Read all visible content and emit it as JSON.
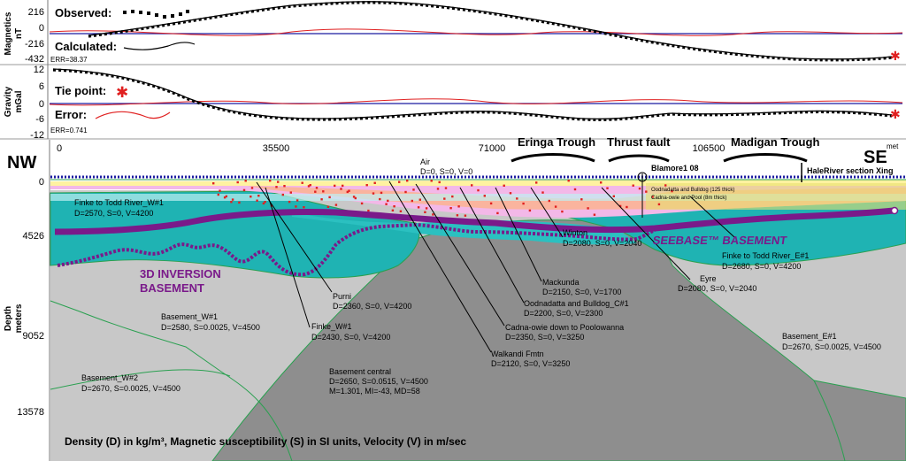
{
  "magnetics": {
    "axis_label": "Magnetics\nnT",
    "ticks": [
      "216",
      "0",
      "-216",
      "-432"
    ],
    "legend_observed": "Observed:",
    "legend_calculated": "Calculated:",
    "err": "ERR=38.37"
  },
  "gravity": {
    "axis_label": "Gravity\nmGal",
    "ticks": [
      "12",
      "6",
      "0",
      "-6",
      "-12"
    ],
    "legend_tie": "Tie point:",
    "legend_error": "Error:",
    "err": "ERR=0.741"
  },
  "section": {
    "x_ticks": [
      "0",
      "35500",
      "71000",
      "106500"
    ],
    "nw": "NW",
    "se": "SE",
    "unit_x": "met",
    "depth_ticks": [
      "0",
      "4526",
      "9052",
      "13578"
    ],
    "depth_label": "Depth\nmeters",
    "air_label": "Air",
    "air_params": "D=0, S=0, V=0",
    "well_label": "Blamore1 08",
    "xing_label": "HaleRiver section Xing",
    "small_layers": [
      "Oodnadatta and Bulldog (125 thick)",
      "Cadna-owie and Pool (8m thick)"
    ],
    "features": [
      "Eringa Trough",
      "Thrust fault",
      "Madigan Trough"
    ],
    "seebase": "SEEBASE™ BASEMENT",
    "inversion_basement": [
      "3D INVERSION",
      "BASEMENT"
    ],
    "footnote": "Density (D) in kg/m³, Magnetic susceptibility (S) in SI units, Velocity (V) in m/sec",
    "bodies": [
      {
        "name": "Finke to Todd River_W#1",
        "params": "D=2570, S=0, V=4200"
      },
      {
        "name": "Finke to Todd River_E#1",
        "params": "D=2680, S=0, V=4200"
      },
      {
        "name": "Winton",
        "params": "D=2080, S=0, V=2040"
      },
      {
        "name": "Mackunda",
        "params": "D=2150, S=0, V=1700"
      },
      {
        "name": "Oodnadatta and Bulldog_C#1",
        "params": "D=2200, S=0, V=2300"
      },
      {
        "name": "Eyre",
        "params": "D=2080, S=0, V=2040"
      },
      {
        "name": "Cadna-owie down to Poolowanna",
        "params": "D=2350, S=0, V=3250"
      },
      {
        "name": "Walkandi Fmtn",
        "params": "D=2120, S=0, V=3250"
      },
      {
        "name": "Purni",
        "params": "D=2360, S=0, V=4200"
      },
      {
        "name": "Finke_W#1",
        "params": "D=2430, S=0, V=4200"
      },
      {
        "name": "Basement_W#1",
        "params": "D=2580, S=0.0025, V=4500"
      },
      {
        "name": "Basement_W#2",
        "params": "D=2670, S=0.0025, V=4500"
      },
      {
        "name": "Basement_E#1",
        "params": "D=2670, S=0.0025, V=4500"
      },
      {
        "name": "Basement central",
        "params": "D=2650, S=0.0515, V=4500",
        "params2": "M=1.301, MI=-43, MD=58"
      }
    ]
  },
  "colors": {
    "observed": "#000000",
    "calculated": "#000000",
    "error": "#e02020",
    "baseline": "#1a1aa0",
    "inversion": "#7a1a8a",
    "basement_light": "#c8c8c8",
    "basement_dark": "#8e8e8e",
    "teal": "#1fb3b3",
    "pink": "#f3b8e8"
  }
}
